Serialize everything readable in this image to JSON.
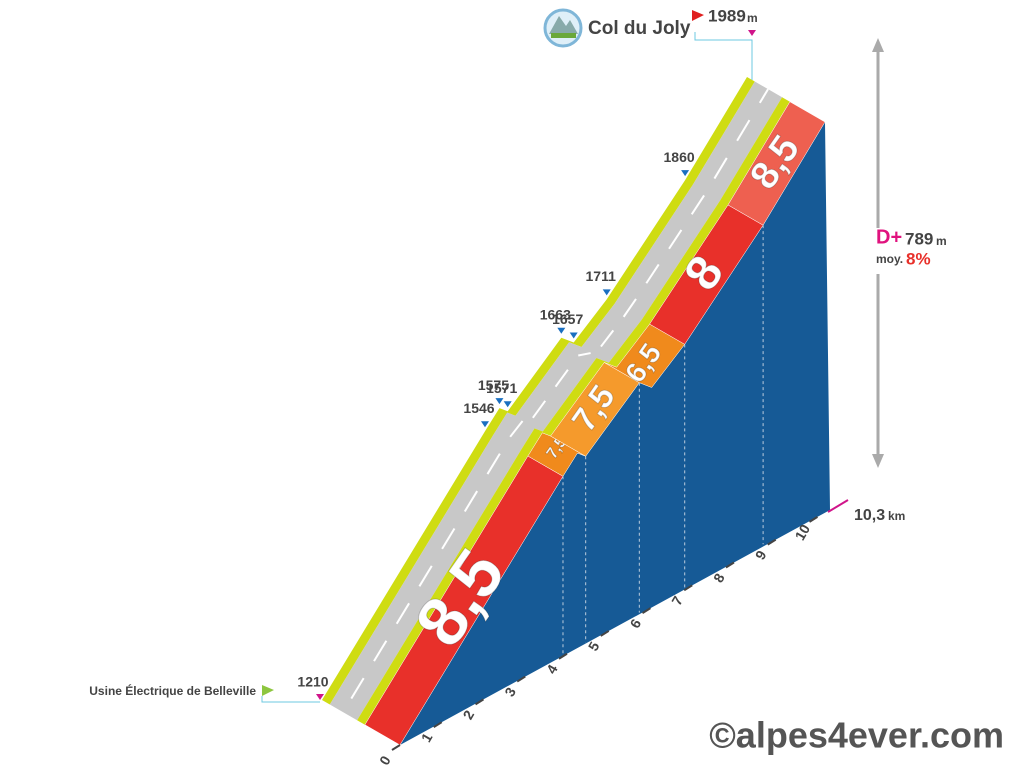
{
  "summit": {
    "name": "Col du Joly",
    "altitude": 1989,
    "unit": "m"
  },
  "start": {
    "name": "Usine Électrique de Belleville",
    "altitude": 1210
  },
  "markers": [
    {
      "altitude": 1546
    },
    {
      "altitude": 1575
    },
    {
      "altitude": 1571
    },
    {
      "altitude": 1663
    },
    {
      "altitude": 1657
    },
    {
      "altitude": 1711
    },
    {
      "altitude": 1860
    }
  ],
  "segments": [
    {
      "label": "8,5",
      "color": "#e8302a"
    },
    {
      "label": "7,5",
      "color": "#f08a1c"
    },
    {
      "label": "7,5",
      "color": "#f59a2c"
    },
    {
      "label": "6,5",
      "color": "#f08a1c"
    },
    {
      "label": "8",
      "color": "#e8302a"
    },
    {
      "label": "8,5",
      "color": "#ee6050"
    }
  ],
  "stats": {
    "gain_label": "D+",
    "gain": "789",
    "gain_unit": "m",
    "avg_label": "moy.",
    "avg": "8%"
  },
  "distance": {
    "total": "10,3",
    "unit": "km",
    "ticks": [
      "0",
      "1",
      "2",
      "3",
      "4",
      "5",
      "6",
      "7",
      "8",
      "9",
      "10"
    ]
  },
  "watermark": "©alpes4ever.com"
}
